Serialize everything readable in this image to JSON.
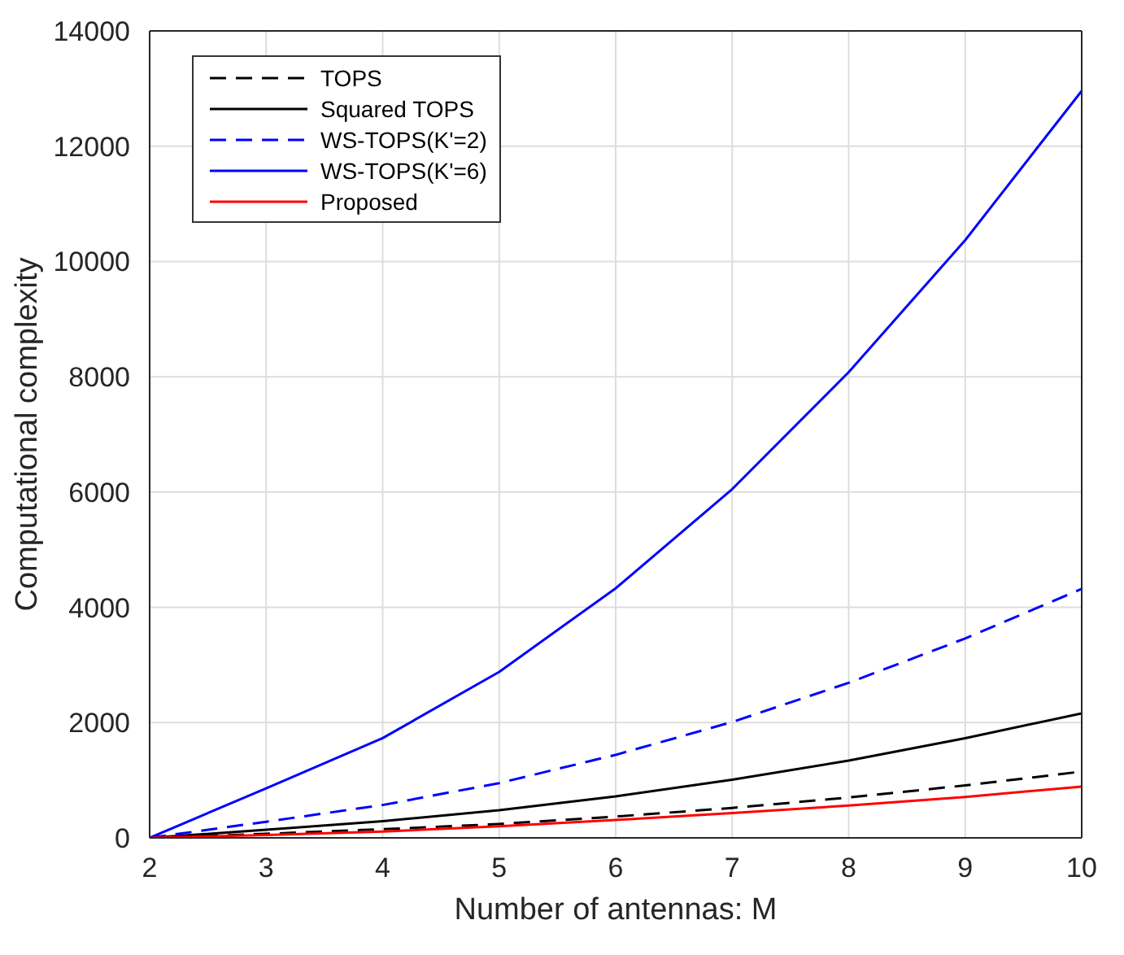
{
  "chart_data": {
    "type": "line",
    "xlabel": "Number of antennas: M",
    "ylabel": "Computational complexity",
    "x": [
      2,
      3,
      4,
      5,
      6,
      7,
      8,
      9,
      10
    ],
    "series": [
      {
        "name": "TOPS",
        "color": "#000000",
        "line_style": "dashed",
        "values": [
          0,
          70,
          150,
          240,
          370,
          520,
          700,
          910,
          1150
        ]
      },
      {
        "name": "Squared TOPS",
        "color": "#000000",
        "line_style": "solid",
        "values": [
          0,
          140,
          290,
          480,
          720,
          1010,
          1340,
          1730,
          2160
        ]
      },
      {
        "name": "WS-TOPS(K'=2)",
        "color": "#0000ff",
        "line_style": "dashed",
        "values": [
          0,
          280,
          570,
          950,
          1440,
          2010,
          2690,
          3460,
          4320
        ]
      },
      {
        "name": "WS-TOPS(K'=6)",
        "color": "#0000ff",
        "line_style": "solid",
        "values": [
          0,
          860,
          1730,
          2880,
          4330,
          6050,
          8080,
          10370,
          12960
        ]
      },
      {
        "name": "Proposed",
        "color": "#ff0000",
        "line_style": "solid",
        "values": [
          0,
          50,
          110,
          200,
          310,
          430,
          560,
          710,
          890
        ]
      }
    ],
    "xlim": [
      2,
      10
    ],
    "xticks": [
      2,
      3,
      4,
      5,
      6,
      7,
      8,
      9,
      10
    ],
    "ylim": [
      0,
      14000
    ],
    "yticks": [
      0,
      2000,
      4000,
      6000,
      8000,
      10000,
      12000,
      14000
    ],
    "grid": true,
    "legend": "top left",
    "marker": "none"
  }
}
